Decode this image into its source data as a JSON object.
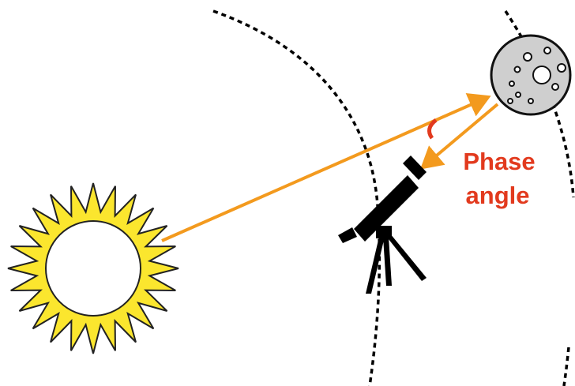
{
  "label": {
    "lines": [
      "Phase",
      "angle"
    ]
  }
}
